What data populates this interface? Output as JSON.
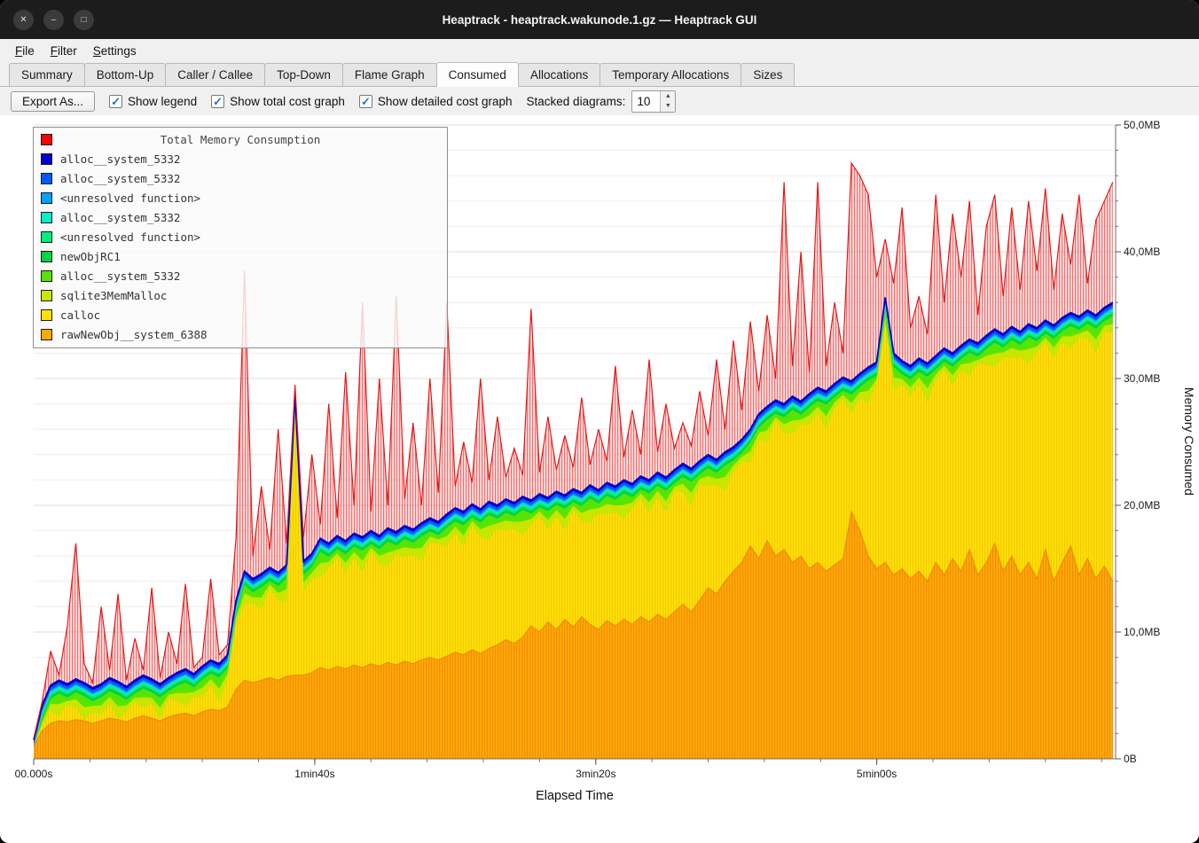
{
  "window": {
    "title": "Heaptrack - heaptrack.wakunode.1.gz — Heaptrack GUI"
  },
  "menu": {
    "items": [
      {
        "label": "File",
        "mnemonic": 0
      },
      {
        "label": "Filter",
        "mnemonic": 0
      },
      {
        "label": "Settings",
        "mnemonic": 0
      }
    ]
  },
  "tabs": {
    "items": [
      "Summary",
      "Bottom-Up",
      "Caller / Callee",
      "Top-Down",
      "Flame Graph",
      "Consumed",
      "Allocations",
      "Temporary Allocations",
      "Sizes"
    ],
    "active": "Consumed"
  },
  "toolbar": {
    "export_label": "Export As...",
    "checkboxes": [
      {
        "label": "Show legend",
        "checked": true
      },
      {
        "label": "Show total cost graph",
        "checked": true
      },
      {
        "label": "Show detailed cost graph",
        "checked": true
      }
    ],
    "stacked_label": "Stacked diagrams:",
    "stacked_value": "10"
  },
  "chart_data": {
    "type": "area",
    "title": "Total Memory Consumption",
    "xlabel": "Elapsed Time",
    "ylabel": "Memory Consumed",
    "xlim": [
      0,
      385
    ],
    "ylim": [
      0,
      50
    ],
    "x_ticks": [
      {
        "t": 0,
        "label": "00.000s"
      },
      {
        "t": 100,
        "label": "1min40s"
      },
      {
        "t": 200,
        "label": "3min20s"
      },
      {
        "t": 300,
        "label": "5min00s"
      }
    ],
    "y_ticks": [
      {
        "v": 0,
        "label": "0B"
      },
      {
        "v": 10,
        "label": "10,0MB"
      },
      {
        "v": 20,
        "label": "20,0MB"
      },
      {
        "v": 30,
        "label": "30,0MB"
      },
      {
        "v": 40,
        "label": "40,0MB"
      },
      {
        "v": 50,
        "label": "50,0MB"
      }
    ],
    "legend": [
      {
        "label": "Total Memory Consumption",
        "color": "#ff0000"
      },
      {
        "label": "alloc__system_5332",
        "color": "#0000cc"
      },
      {
        "label": "alloc__system_5332",
        "color": "#0059ff"
      },
      {
        "label": "<unresolved function>",
        "color": "#00a2ff"
      },
      {
        "label": "alloc__system_5332",
        "color": "#00eec8"
      },
      {
        "label": "<unresolved function>",
        "color": "#00f07d"
      },
      {
        "label": "newObjRC1",
        "color": "#00d243"
      },
      {
        "label": "alloc__system_5332",
        "color": "#54e600"
      },
      {
        "label": "sqlite3MemMalloc",
        "color": "#c8e600"
      },
      {
        "label": "calloc",
        "color": "#ffe300"
      },
      {
        "label": "rawNewObj__system_6388",
        "color": "#ffaa00"
      }
    ],
    "colors": {
      "total": "#ff0000",
      "darkblue": "#0000cc",
      "blue": "#0059ff",
      "lightblue": "#00a2ff",
      "turquoise": "#00eec8",
      "springgreen": "#00f07d",
      "green": "#00d243",
      "brightgreen": "#54e600",
      "yellowgreen": "#c8e600",
      "yellow": "#ffe300",
      "orange": "#ffaa00"
    },
    "thin_bands": [
      {
        "name": "alloc__system_5332",
        "color": "#0000cc",
        "thickness": 0.18
      },
      {
        "name": "alloc__system_5332",
        "color": "#0059ff",
        "thickness": 0.22
      },
      {
        "name": "<unresolved function>",
        "color": "#00a2ff",
        "thickness": 0.12
      },
      {
        "name": "alloc__system_5332",
        "color": "#00eec8",
        "thickness": 0.12
      },
      {
        "name": "<unresolved function>",
        "color": "#00f07d",
        "thickness": 0.18
      },
      {
        "name": "newObjRC1",
        "color": "#00d243",
        "thickness": 0.25
      }
    ],
    "green_split": 0.45,
    "x": [
      0,
      3,
      6,
      9,
      12,
      15,
      18,
      21,
      24,
      27,
      30,
      33,
      36,
      39,
      42,
      45,
      48,
      51,
      54,
      57,
      60,
      63,
      66,
      69,
      72,
      75,
      78,
      81,
      84,
      87,
      90,
      93,
      96,
      99,
      102,
      105,
      108,
      111,
      114,
      117,
      120,
      123,
      126,
      129,
      132,
      135,
      138,
      141,
      144,
      147,
      150,
      153,
      156,
      159,
      162,
      165,
      168,
      171,
      174,
      177,
      180,
      183,
      186,
      189,
      192,
      195,
      198,
      201,
      204,
      207,
      210,
      213,
      216,
      219,
      222,
      225,
      228,
      231,
      234,
      237,
      240,
      243,
      246,
      249,
      252,
      255,
      258,
      261,
      264,
      267,
      270,
      273,
      276,
      279,
      282,
      285,
      288,
      291,
      294,
      297,
      300,
      303,
      306,
      309,
      312,
      315,
      318,
      321,
      324,
      327,
      330,
      333,
      336,
      339,
      342,
      345,
      348,
      351,
      354,
      357,
      360,
      363,
      366,
      369,
      372,
      375,
      378,
      381,
      384
    ],
    "stack_top": [
      1.5,
      4.2,
      5.8,
      6.2,
      5.9,
      6.3,
      6.0,
      5.6,
      5.9,
      6.4,
      6.1,
      5.7,
      6.2,
      6.6,
      6.3,
      5.9,
      6.4,
      6.8,
      7.1,
      6.7,
      7.3,
      7.8,
      7.5,
      8.2,
      12.5,
      14.8,
      14.2,
      14.6,
      15.1,
      14.7,
      15.3,
      28.8,
      15.6,
      16.2,
      17.4,
      17.0,
      17.6,
      17.2,
      17.8,
      17.5,
      18.0,
      17.6,
      18.2,
      17.9,
      18.4,
      18.1,
      18.6,
      19.0,
      18.7,
      19.3,
      19.8,
      19.5,
      20.1,
      19.7,
      20.3,
      20.0,
      20.5,
      20.2,
      20.7,
      20.4,
      20.9,
      20.6,
      21.1,
      20.8,
      21.3,
      21.0,
      21.6,
      21.2,
      21.8,
      21.5,
      22.0,
      21.7,
      22.3,
      22.0,
      22.6,
      22.2,
      22.8,
      23.3,
      22.9,
      23.5,
      24.0,
      23.6,
      24.2,
      24.6,
      25.2,
      26.0,
      27.2,
      27.8,
      28.3,
      28.0,
      28.6,
      28.2,
      28.8,
      29.3,
      29.0,
      29.6,
      30.1,
      29.8,
      30.4,
      30.9,
      31.3,
      36.4,
      32.0,
      31.4,
      31.0,
      31.6,
      31.2,
      31.8,
      32.4,
      32.0,
      32.6,
      33.1,
      32.8,
      33.4,
      33.9,
      33.5,
      34.1,
      33.7,
      34.3,
      34.0,
      34.6,
      34.2,
      34.8,
      35.2,
      34.9,
      35.4,
      35.0,
      35.6,
      36.0
    ],
    "total": [
      1.6,
      4.5,
      8.5,
      6.6,
      10.5,
      17.0,
      7.5,
      6.0,
      12.0,
      7.0,
      13.0,
      6.2,
      9.5,
      7.0,
      13.5,
      6.4,
      10.0,
      7.5,
      13.8,
      7.2,
      8.0,
      14.2,
      8.2,
      9.0,
      17.5,
      38.5,
      16.0,
      21.5,
      16.5,
      26.0,
      17.0,
      29.5,
      17.5,
      24.0,
      18.5,
      28.0,
      19.0,
      30.5,
      20.0,
      36.0,
      19.5,
      30.0,
      20.0,
      36.5,
      20.5,
      26.5,
      20.0,
      30.0,
      21.0,
      36.0,
      21.5,
      25.0,
      21.8,
      30.0,
      22.0,
      27.0,
      22.2,
      24.5,
      22.4,
      35.5,
      22.6,
      27.0,
      22.8,
      25.5,
      23.0,
      28.5,
      23.2,
      26.0,
      23.5,
      31.0,
      23.8,
      27.5,
      24.0,
      31.5,
      24.2,
      28.0,
      24.5,
      26.5,
      24.7,
      29.0,
      25.5,
      31.5,
      26.0,
      33.0,
      27.5,
      34.5,
      29.0,
      35.0,
      30.0,
      45.5,
      31.0,
      40.0,
      30.5,
      45.5,
      31.0,
      36.0,
      32.0,
      47.0,
      46.0,
      44.5,
      38.0,
      41.0,
      37.5,
      43.5,
      34.0,
      36.5,
      33.5,
      44.5,
      36.0,
      43.0,
      38.0,
      44.0,
      35.0,
      42.0,
      44.5,
      36.5,
      43.5,
      37.0,
      44.0,
      38.5,
      45.0,
      37.0,
      43.0,
      39.0,
      44.5,
      37.5,
      42.5,
      44.0,
      45.5
    ],
    "orange_top": [
      1.0,
      2.2,
      2.8,
      3.0,
      2.9,
      3.1,
      3.0,
      2.8,
      3.0,
      3.2,
      3.1,
      2.9,
      3.2,
      3.4,
      3.2,
      3.0,
      3.3,
      3.5,
      3.6,
      3.4,
      3.7,
      3.9,
      3.8,
      4.1,
      5.5,
      6.2,
      6.0,
      6.2,
      6.4,
      6.2,
      6.5,
      6.6,
      6.6,
      6.8,
      7.2,
      7.0,
      7.3,
      7.1,
      7.4,
      7.2,
      7.5,
      7.3,
      7.6,
      7.4,
      7.7,
      7.5,
      7.8,
      8.0,
      7.8,
      8.1,
      8.4,
      8.2,
      8.6,
      8.3,
      8.7,
      9.0,
      9.4,
      9.1,
      9.6,
      10.5,
      10.0,
      10.8,
      10.2,
      11.0,
      10.4,
      11.2,
      10.6,
      10.2,
      10.9,
      10.5,
      11.0,
      10.6,
      11.2,
      10.8,
      11.4,
      11.0,
      11.6,
      12.2,
      11.6,
      12.5,
      13.5,
      13.0,
      14.0,
      14.8,
      15.5,
      16.8,
      15.8,
      17.2,
      16.0,
      16.5,
      15.5,
      16.0,
      15.0,
      15.5,
      14.8,
      15.3,
      15.8,
      19.5,
      18.0,
      16.0,
      15.0,
      15.5,
      14.5,
      15.0,
      14.2,
      14.8,
      14.0,
      15.5,
      14.5,
      15.8,
      14.8,
      16.5,
      14.5,
      15.5,
      17.0,
      14.8,
      16.0,
      14.5,
      15.5,
      14.2,
      16.5,
      14.0,
      15.5,
      16.8,
      14.5,
      15.8,
      14.2,
      15.2,
      14.0
    ],
    "green_thickness": [
      0.3,
      0.6,
      0.9,
      1.8,
      0.6,
      1.2,
      1.9,
      0.8,
      1.4,
      1.0,
      2.0,
      0.9,
      0.7,
      1.5,
      0.9,
      1.8,
      0.6,
      1.2,
      1.9,
      0.8,
      1.4,
      1.0,
      2.0,
      0.9,
      0.7,
      1.5,
      0.9,
      1.8,
      0.6,
      1.2,
      1.9,
      0.8,
      1.4,
      1.0,
      2.0,
      0.9,
      0.7,
      1.5,
      0.9,
      1.8,
      0.6,
      1.2,
      1.9,
      0.8,
      1.4,
      1.0,
      2.0,
      0.9,
      0.7,
      1.5,
      0.9,
      1.8,
      0.6,
      1.2,
      1.9,
      0.8,
      1.4,
      1.0,
      2.0,
      0.9,
      0.7,
      1.5,
      0.9,
      1.8,
      0.6,
      1.2,
      1.9,
      0.8,
      1.4,
      1.0,
      2.0,
      0.9,
      0.7,
      1.5,
      0.9,
      1.8,
      0.6,
      1.2,
      1.9,
      0.8,
      1.4,
      1.0,
      2.0,
      0.9,
      0.7,
      1.5,
      0.9,
      1.8,
      0.6,
      1.2,
      1.9,
      0.8,
      1.4,
      1.0,
      2.0,
      0.9,
      0.7,
      1.5,
      0.9,
      1.8,
      0.6,
      1.2,
      1.9,
      0.8,
      1.4,
      1.0,
      2.0,
      0.9,
      0.7,
      1.5,
      0.9,
      1.8,
      0.6,
      1.2,
      1.9,
      0.8,
      1.4,
      1.0,
      2.0,
      0.9,
      0.7,
      1.5,
      0.9,
      1.8,
      0.6,
      1.2,
      1.9,
      0.8,
      1.4
    ]
  }
}
